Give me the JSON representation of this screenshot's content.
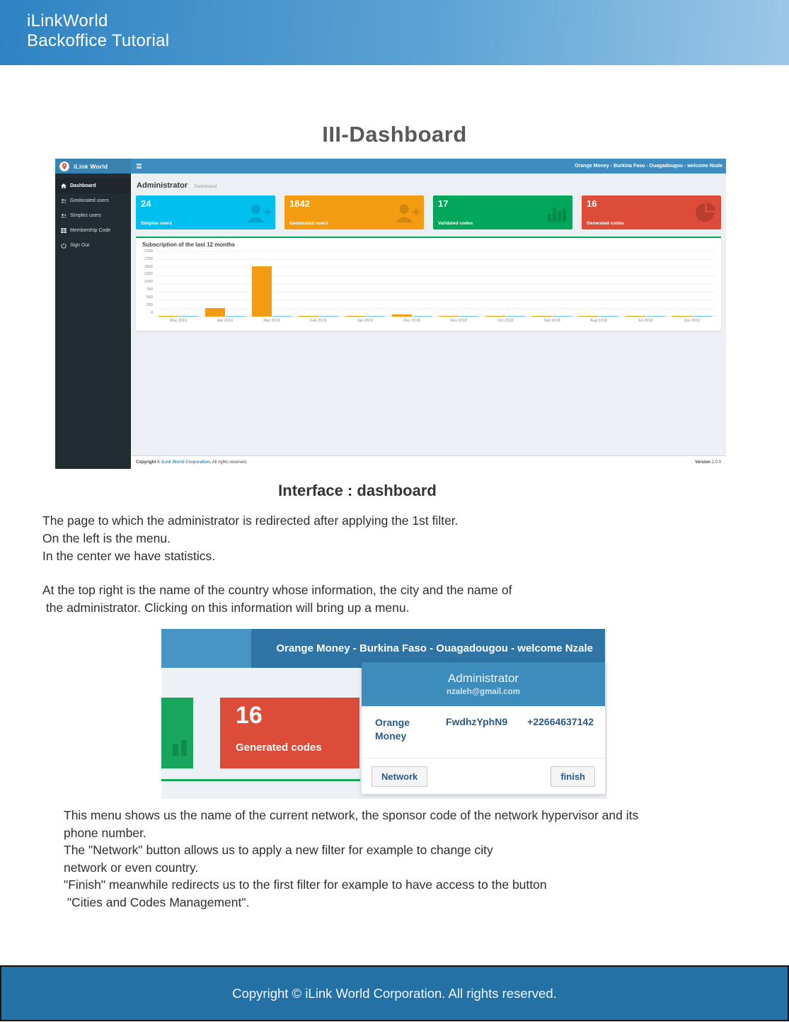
{
  "doc": {
    "header": {
      "line1": "iLinkWorld",
      "line2": "Backoffice Tutorial"
    },
    "title": "III-Dashboard",
    "subtitle": "Interface : dashboard",
    "para1": [
      "The page to which the administrator is redirected after applying the 1st filter.",
      "On the left is the menu.",
      "In the center we have statistics."
    ],
    "para2": [
      "At the top right is the name of the country whose information, the city and the name of",
      " the administrator. Clicking on this information will bring up a menu."
    ],
    "para3": [
      "This menu shows us the name of the current network, the sponsor code of the network hypervisor and its",
      "phone number.",
      "The \"Network\" button allows us to apply a new filter for example to change city",
      "network or even country.",
      "\"Finish\" meanwhile redirects us to the first filter for example to have access to the button",
      " \"Cities and Codes Management\"."
    ],
    "footer": "Copyright © iLink World Corporation. All rights reserved.",
    "footer_color": "#2471a6",
    "header_gradient_left": "#2f83c3",
    "header_gradient_right": "#9cc7e8"
  },
  "dashboard": {
    "brand": "iLink World",
    "topbar_right": "Orange Money - Burkina Faso - Ouagadougou - welcome Nzale",
    "sidebar": {
      "items": [
        {
          "label": "Dashboard",
          "icon": "home-icon",
          "active": true
        },
        {
          "label": "Geolocated users",
          "icon": "users-icon",
          "active": false
        },
        {
          "label": "Simples users",
          "icon": "users-icon",
          "active": false
        },
        {
          "label": "Membership Code",
          "icon": "table-icon",
          "active": false
        },
        {
          "label": "Sign Out",
          "icon": "power-icon",
          "active": false
        }
      ]
    },
    "page_title": "Administrator",
    "page_subtitle": "Dashboard",
    "cards": [
      {
        "value": "24",
        "label": "Simples users",
        "color": "#00c0ef",
        "icon": "user-plus-icon"
      },
      {
        "value": "1842",
        "label": "Geolocated users",
        "color": "#f39c12",
        "icon": "user-plus-icon"
      },
      {
        "value": "17",
        "label": "Validated codes",
        "color": "#00a65a",
        "icon": "bar-chart-icon"
      },
      {
        "value": "16",
        "label": "Generated codes",
        "color": "#dd4b39",
        "icon": "pie-chart-icon"
      }
    ],
    "footer": {
      "prefix": "Copyright © ",
      "link": "iLink World Corporation.",
      "suffix": " All rights reserved.",
      "version_label": "Version",
      "version_value": " 2.0.0"
    }
  },
  "chart_data": {
    "type": "bar",
    "title": "Subscription of the last 12 months",
    "categories": [
      "May 2019",
      "Apr 2019",
      "Mar 2019",
      "Feb 2019",
      "Jan 2019",
      "Dec 2018",
      "Nov 2018",
      "Oct 2018",
      "Sep 2018",
      "Aug 2018",
      "Jul 2018",
      "Jun 2018"
    ],
    "series": [
      {
        "name": "Geolocated users",
        "color": "#f39c12",
        "values": [
          8,
          265,
          1550,
          15,
          8,
          65,
          12,
          6,
          6,
          10,
          6,
          12
        ]
      },
      {
        "name": "Simples users",
        "color": "#66c7ee",
        "values": [
          15,
          18,
          30,
          22,
          18,
          20,
          15,
          12,
          12,
          15,
          12,
          15
        ]
      }
    ],
    "xlabel": "",
    "ylabel": "",
    "ylim": [
      0,
      2000
    ],
    "yticks": [
      2000,
      1750,
      1500,
      1250,
      1000,
      750,
      500,
      250,
      0
    ],
    "grid": true,
    "legend": "none"
  },
  "popup_shot": {
    "topbar_right": "Orange Money - Burkina Faso - Ouagadougou - welcome Nzale",
    "card": {
      "value": "16",
      "label": "Generated codes",
      "color": "#dd4b39"
    },
    "panel": {
      "title": "Administrator",
      "email": "nzaleh@gmail.com",
      "network": "Orange Money",
      "sponsor_code": "FwdhzYphN9",
      "phone": "+22664637142",
      "network_button": "Network",
      "finish_button": "finish"
    }
  }
}
